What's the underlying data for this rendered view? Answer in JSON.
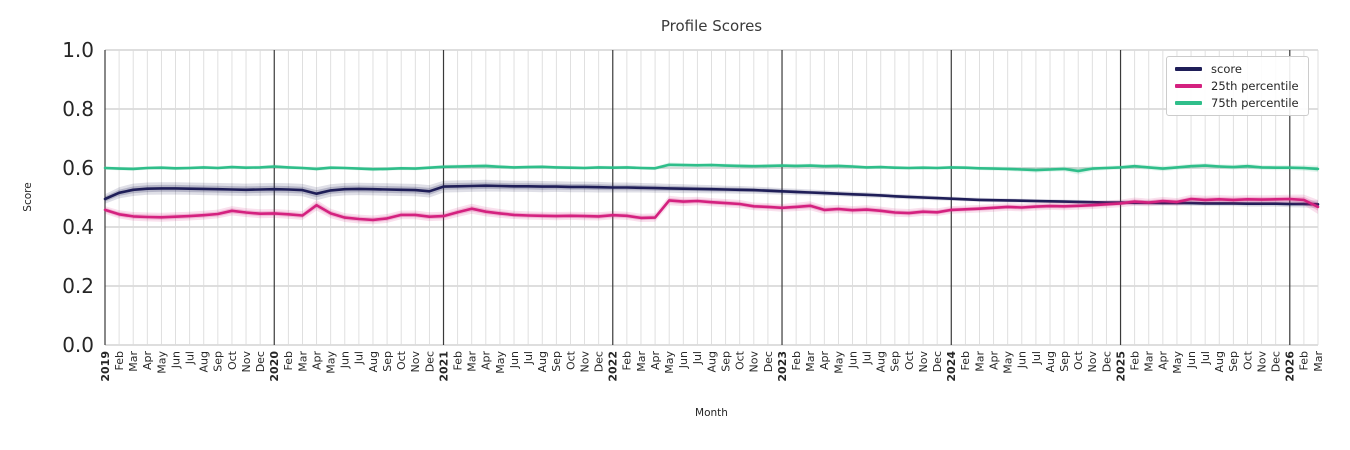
{
  "chart_data": {
    "type": "line",
    "title": "Profile Scores",
    "xlabel": "Month",
    "ylabel": "Score",
    "ylim": [
      0.0,
      1.0
    ],
    "yticks": [
      0.0,
      0.2,
      0.4,
      0.6,
      0.8,
      1.0
    ],
    "grid": true,
    "legend_position": "upper right",
    "x_labels": [
      "2019",
      "Feb",
      "Mar",
      "Apr",
      "May",
      "Jun",
      "Jul",
      "Aug",
      "Sep",
      "Oct",
      "Nov",
      "Dec",
      "2020",
      "Feb",
      "Mar",
      "Apr",
      "May",
      "Jun",
      "Jul",
      "Aug",
      "Sep",
      "Oct",
      "Nov",
      "Dec",
      "2021",
      "Feb",
      "Mar",
      "Apr",
      "May",
      "Jun",
      "Jul",
      "Aug",
      "Sep",
      "Oct",
      "Nov",
      "Dec",
      "2022",
      "Feb",
      "Mar",
      "Apr",
      "May",
      "Jun",
      "Jul",
      "Aug",
      "Sep",
      "Oct",
      "Nov",
      "Dec",
      "2023",
      "Feb",
      "Mar",
      "Apr",
      "May",
      "Jun",
      "Jul",
      "Aug",
      "Sep",
      "Oct",
      "Nov",
      "Dec",
      "2024",
      "Feb",
      "Mar",
      "Apr",
      "May",
      "Jun",
      "Jul",
      "Aug",
      "Sep",
      "Oct",
      "Nov",
      "Dec",
      "2025",
      "Feb",
      "Mar",
      "Apr",
      "May",
      "Jun",
      "Jul",
      "Aug",
      "Sep",
      "Oct",
      "Nov",
      "Dec",
      "2026",
      "Feb",
      "Mar"
    ],
    "series": [
      {
        "name": "score",
        "color": "#1F1E58",
        "values": [
          0.495,
          0.516,
          0.526,
          0.53,
          0.531,
          0.531,
          0.53,
          0.529,
          0.528,
          0.527,
          0.526,
          0.527,
          0.528,
          0.527,
          0.525,
          0.513,
          0.524,
          0.528,
          0.529,
          0.528,
          0.527,
          0.526,
          0.525,
          0.521,
          0.537,
          0.538,
          0.539,
          0.54,
          0.539,
          0.538,
          0.538,
          0.537,
          0.537,
          0.536,
          0.536,
          0.535,
          0.534,
          0.534,
          0.533,
          0.532,
          0.531,
          0.53,
          0.529,
          0.528,
          0.527,
          0.526,
          0.525,
          0.523,
          0.521,
          0.519,
          0.517,
          0.515,
          0.513,
          0.511,
          0.509,
          0.507,
          0.504,
          0.502,
          0.5,
          0.498,
          0.496,
          0.494,
          0.492,
          0.491,
          0.49,
          0.489,
          0.488,
          0.487,
          0.486,
          0.485,
          0.484,
          0.483,
          0.483,
          0.482,
          0.482,
          0.481,
          0.481,
          0.481,
          0.48,
          0.48,
          0.48,
          0.479,
          0.479,
          0.479,
          0.478,
          0.478,
          0.477
        ],
        "band": [
          0.016,
          0.019,
          0.021,
          0.021,
          0.021,
          0.021,
          0.021,
          0.021,
          0.021,
          0.021,
          0.021,
          0.021,
          0.021,
          0.021,
          0.021,
          0.022,
          0.021,
          0.021,
          0.021,
          0.021,
          0.021,
          0.021,
          0.021,
          0.021,
          0.02,
          0.02,
          0.02,
          0.02,
          0.019,
          0.019,
          0.019,
          0.019,
          0.018,
          0.018,
          0.018,
          0.018,
          0.017,
          0.017,
          0.016,
          0.016,
          0.015,
          0.015,
          0.014,
          0.014,
          0.013,
          0.013,
          0.012,
          0.012,
          0.011,
          0.011,
          0.01,
          0.01,
          0.009,
          0.009,
          0.009,
          0.008,
          0.008,
          0.008,
          0.008,
          0.007,
          0.007,
          0.007,
          0.007,
          0.007,
          0.007,
          0.007,
          0.007,
          0.007,
          0.007,
          0.007,
          0.007,
          0.007,
          0.008,
          0.008,
          0.008,
          0.008,
          0.008,
          0.009,
          0.009,
          0.009,
          0.009,
          0.01,
          0.01,
          0.01,
          0.011,
          0.012,
          0.013
        ]
      },
      {
        "name": "25th percentile",
        "color": "#D4217F",
        "values": [
          0.458,
          0.443,
          0.436,
          0.434,
          0.433,
          0.435,
          0.437,
          0.44,
          0.444,
          0.455,
          0.449,
          0.445,
          0.446,
          0.443,
          0.439,
          0.474,
          0.446,
          0.432,
          0.427,
          0.424,
          0.429,
          0.441,
          0.441,
          0.435,
          0.437,
          0.45,
          0.462,
          0.452,
          0.446,
          0.441,
          0.439,
          0.438,
          0.437,
          0.438,
          0.437,
          0.436,
          0.44,
          0.438,
          0.431,
          0.432,
          0.49,
          0.486,
          0.488,
          0.484,
          0.481,
          0.478,
          0.47,
          0.468,
          0.465,
          0.468,
          0.472,
          0.458,
          0.461,
          0.457,
          0.459,
          0.455,
          0.449,
          0.447,
          0.452,
          0.45,
          0.458,
          0.46,
          0.462,
          0.465,
          0.468,
          0.466,
          0.469,
          0.471,
          0.47,
          0.472,
          0.474,
          0.477,
          0.48,
          0.486,
          0.483,
          0.488,
          0.485,
          0.495,
          0.492,
          0.494,
          0.492,
          0.494,
          0.493,
          0.494,
          0.495,
          0.492,
          0.468
        ],
        "band": [
          0.013,
          0.014,
          0.015,
          0.015,
          0.015,
          0.015,
          0.015,
          0.015,
          0.015,
          0.016,
          0.015,
          0.015,
          0.015,
          0.015,
          0.015,
          0.018,
          0.016,
          0.015,
          0.015,
          0.015,
          0.015,
          0.015,
          0.015,
          0.015,
          0.015,
          0.016,
          0.017,
          0.016,
          0.015,
          0.014,
          0.014,
          0.014,
          0.014,
          0.014,
          0.014,
          0.014,
          0.014,
          0.014,
          0.014,
          0.014,
          0.016,
          0.015,
          0.014,
          0.014,
          0.014,
          0.014,
          0.013,
          0.013,
          0.013,
          0.014,
          0.015,
          0.014,
          0.014,
          0.014,
          0.015,
          0.014,
          0.014,
          0.014,
          0.014,
          0.013,
          0.013,
          0.013,
          0.013,
          0.013,
          0.013,
          0.013,
          0.013,
          0.013,
          0.013,
          0.013,
          0.013,
          0.013,
          0.013,
          0.014,
          0.013,
          0.014,
          0.013,
          0.014,
          0.014,
          0.014,
          0.014,
          0.014,
          0.014,
          0.014,
          0.015,
          0.018,
          0.024
        ]
      },
      {
        "name": "75th percentile",
        "color": "#2FBE8A",
        "values": [
          0.6,
          0.598,
          0.597,
          0.6,
          0.601,
          0.599,
          0.6,
          0.602,
          0.6,
          0.603,
          0.601,
          0.602,
          0.605,
          0.602,
          0.6,
          0.597,
          0.601,
          0.6,
          0.598,
          0.596,
          0.597,
          0.599,
          0.598,
          0.601,
          0.604,
          0.605,
          0.606,
          0.607,
          0.604,
          0.602,
          0.603,
          0.604,
          0.602,
          0.601,
          0.6,
          0.602,
          0.601,
          0.602,
          0.6,
          0.599,
          0.611,
          0.61,
          0.609,
          0.61,
          0.608,
          0.607,
          0.606,
          0.607,
          0.608,
          0.607,
          0.608,
          0.606,
          0.607,
          0.605,
          0.602,
          0.603,
          0.601,
          0.6,
          0.601,
          0.6,
          0.602,
          0.601,
          0.599,
          0.598,
          0.597,
          0.595,
          0.593,
          0.595,
          0.597,
          0.59,
          0.598,
          0.6,
          0.602,
          0.606,
          0.602,
          0.598,
          0.602,
          0.606,
          0.608,
          0.605,
          0.603,
          0.606,
          0.602,
          0.601,
          0.601,
          0.6,
          0.597
        ],
        "band": [
          0.006,
          0.006,
          0.006,
          0.006,
          0.006,
          0.006,
          0.006,
          0.006,
          0.006,
          0.006,
          0.006,
          0.006,
          0.007,
          0.006,
          0.006,
          0.007,
          0.006,
          0.006,
          0.006,
          0.007,
          0.006,
          0.006,
          0.006,
          0.006,
          0.007,
          0.007,
          0.007,
          0.008,
          0.007,
          0.006,
          0.006,
          0.006,
          0.006,
          0.006,
          0.006,
          0.006,
          0.006,
          0.006,
          0.006,
          0.006,
          0.008,
          0.007,
          0.007,
          0.007,
          0.007,
          0.007,
          0.007,
          0.007,
          0.007,
          0.007,
          0.007,
          0.007,
          0.007,
          0.007,
          0.006,
          0.006,
          0.006,
          0.006,
          0.006,
          0.006,
          0.006,
          0.006,
          0.006,
          0.007,
          0.007,
          0.008,
          0.009,
          0.008,
          0.008,
          0.012,
          0.008,
          0.007,
          0.007,
          0.008,
          0.008,
          0.009,
          0.008,
          0.008,
          0.008,
          0.008,
          0.008,
          0.009,
          0.008,
          0.008,
          0.008,
          0.009,
          0.011
        ]
      }
    ]
  }
}
